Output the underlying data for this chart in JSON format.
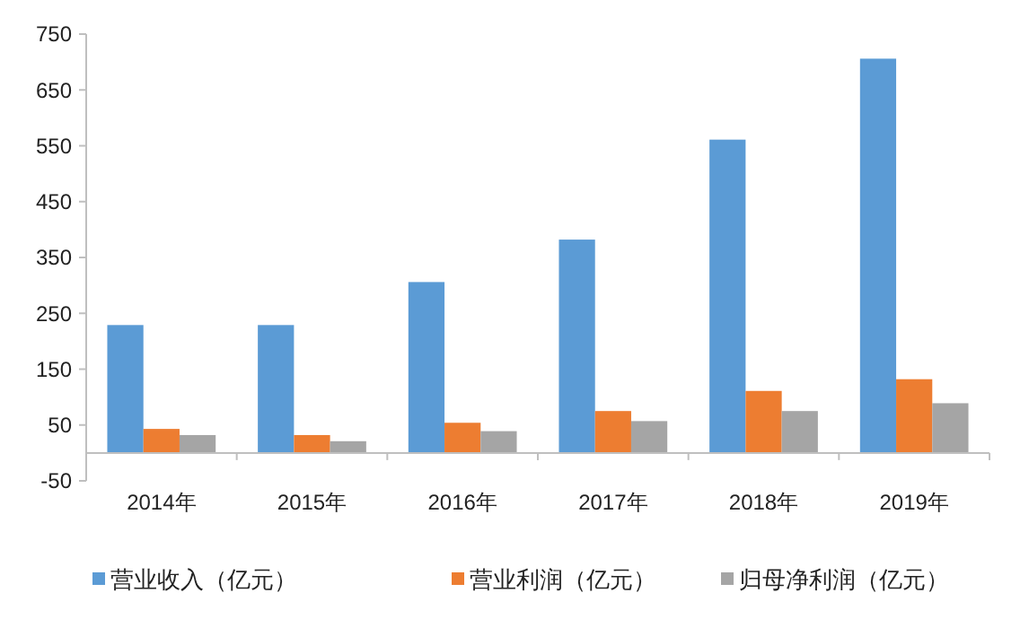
{
  "chart_data": {
    "type": "bar",
    "categories": [
      "2014年",
      "2015年",
      "2016年",
      "2017年",
      "2018年",
      "2019年"
    ],
    "series": [
      {
        "name": "营业收入（亿元）",
        "color": "#5b9bd5",
        "values": [
          229,
          229,
          306,
          382,
          561,
          706
        ]
      },
      {
        "name": "营业利润（亿元）",
        "color": "#ed7d31",
        "values": [
          43,
          32,
          54,
          75,
          111,
          132
        ]
      },
      {
        "name": "归母净利润（亿元）",
        "color": "#a5a5a5",
        "values": [
          32,
          21,
          39,
          57,
          75,
          89
        ]
      }
    ],
    "ylim": [
      -50,
      750
    ],
    "yticks": [
      -50,
      50,
      150,
      250,
      350,
      450,
      550,
      650,
      750
    ],
    "grid": false,
    "legend": "bottom"
  }
}
